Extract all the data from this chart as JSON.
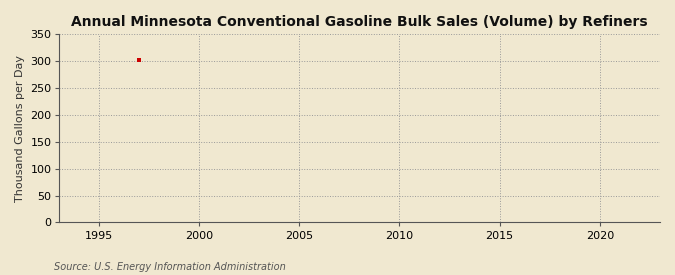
{
  "title": "Annual Minnesota Conventional Gasoline Bulk Sales (Volume) by Refiners",
  "ylabel": "Thousand Gallons per Day",
  "source": "Source: U.S. Energy Information Administration",
  "data_x": [
    1997
  ],
  "data_y": [
    303
  ],
  "marker_color": "#cc0000",
  "marker_style": "s",
  "marker_size": 3,
  "xlim": [
    1993,
    2023
  ],
  "ylim": [
    0,
    350
  ],
  "xticks": [
    1995,
    2000,
    2005,
    2010,
    2015,
    2020
  ],
  "yticks": [
    0,
    50,
    100,
    150,
    200,
    250,
    300,
    350
  ],
  "background_color": "#f0e8d0",
  "plot_bg_color": "#f0e8d0",
  "grid_color": "#999999",
  "title_fontsize": 10,
  "label_fontsize": 8,
  "tick_fontsize": 8,
  "source_fontsize": 7
}
